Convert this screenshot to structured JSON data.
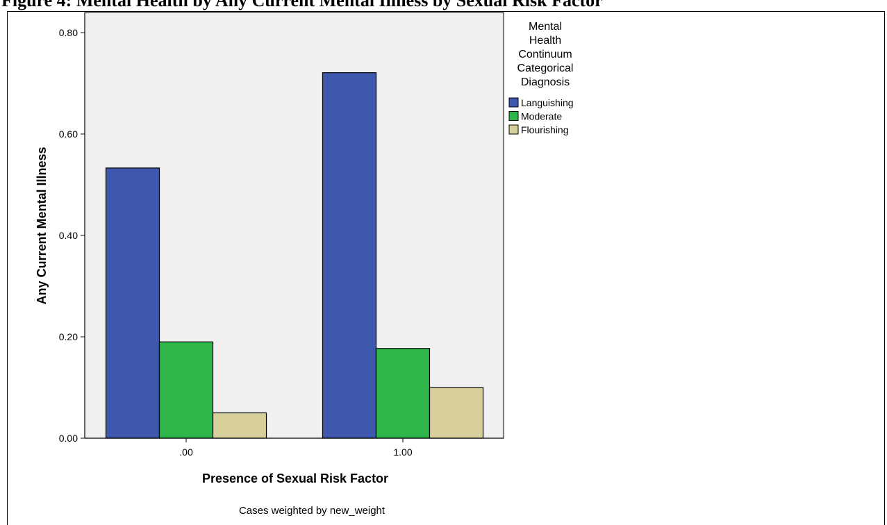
{
  "figure": {
    "title": "Figure 4: Mental Health by Any Current Mental Illness by Sexual Risk Factor",
    "footnote": "Cases weighted by new_weight"
  },
  "colors": {
    "plot_bg": "#f0f0f0",
    "Languishing": "#3e58ae",
    "Moderate": "#2fb64a",
    "Flourishing": "#d6cf99"
  },
  "chart_data": {
    "type": "bar",
    "categories": [
      ".00",
      "1.00"
    ],
    "series": [
      {
        "name": "Languishing",
        "values": [
          0.533,
          0.721
        ]
      },
      {
        "name": "Moderate",
        "values": [
          0.19,
          0.177
        ]
      },
      {
        "name": "Flourishing",
        "values": [
          0.05,
          0.1
        ]
      }
    ],
    "xlabel": "Presence of Sexual Risk Factor",
    "ylabel": "Any Current Mental Illness",
    "ylim": [
      0,
      0.8
    ],
    "yticks": [
      "0.00",
      "0.20",
      "0.40",
      "0.60",
      "0.80"
    ],
    "ytick_values": [
      0,
      0.2,
      0.4,
      0.6,
      0.8
    ],
    "legend": {
      "title": [
        "Mental",
        "Health",
        "Continuum",
        "Categorical",
        "Diagnosis"
      ],
      "position": "top-right"
    },
    "grid": false
  }
}
